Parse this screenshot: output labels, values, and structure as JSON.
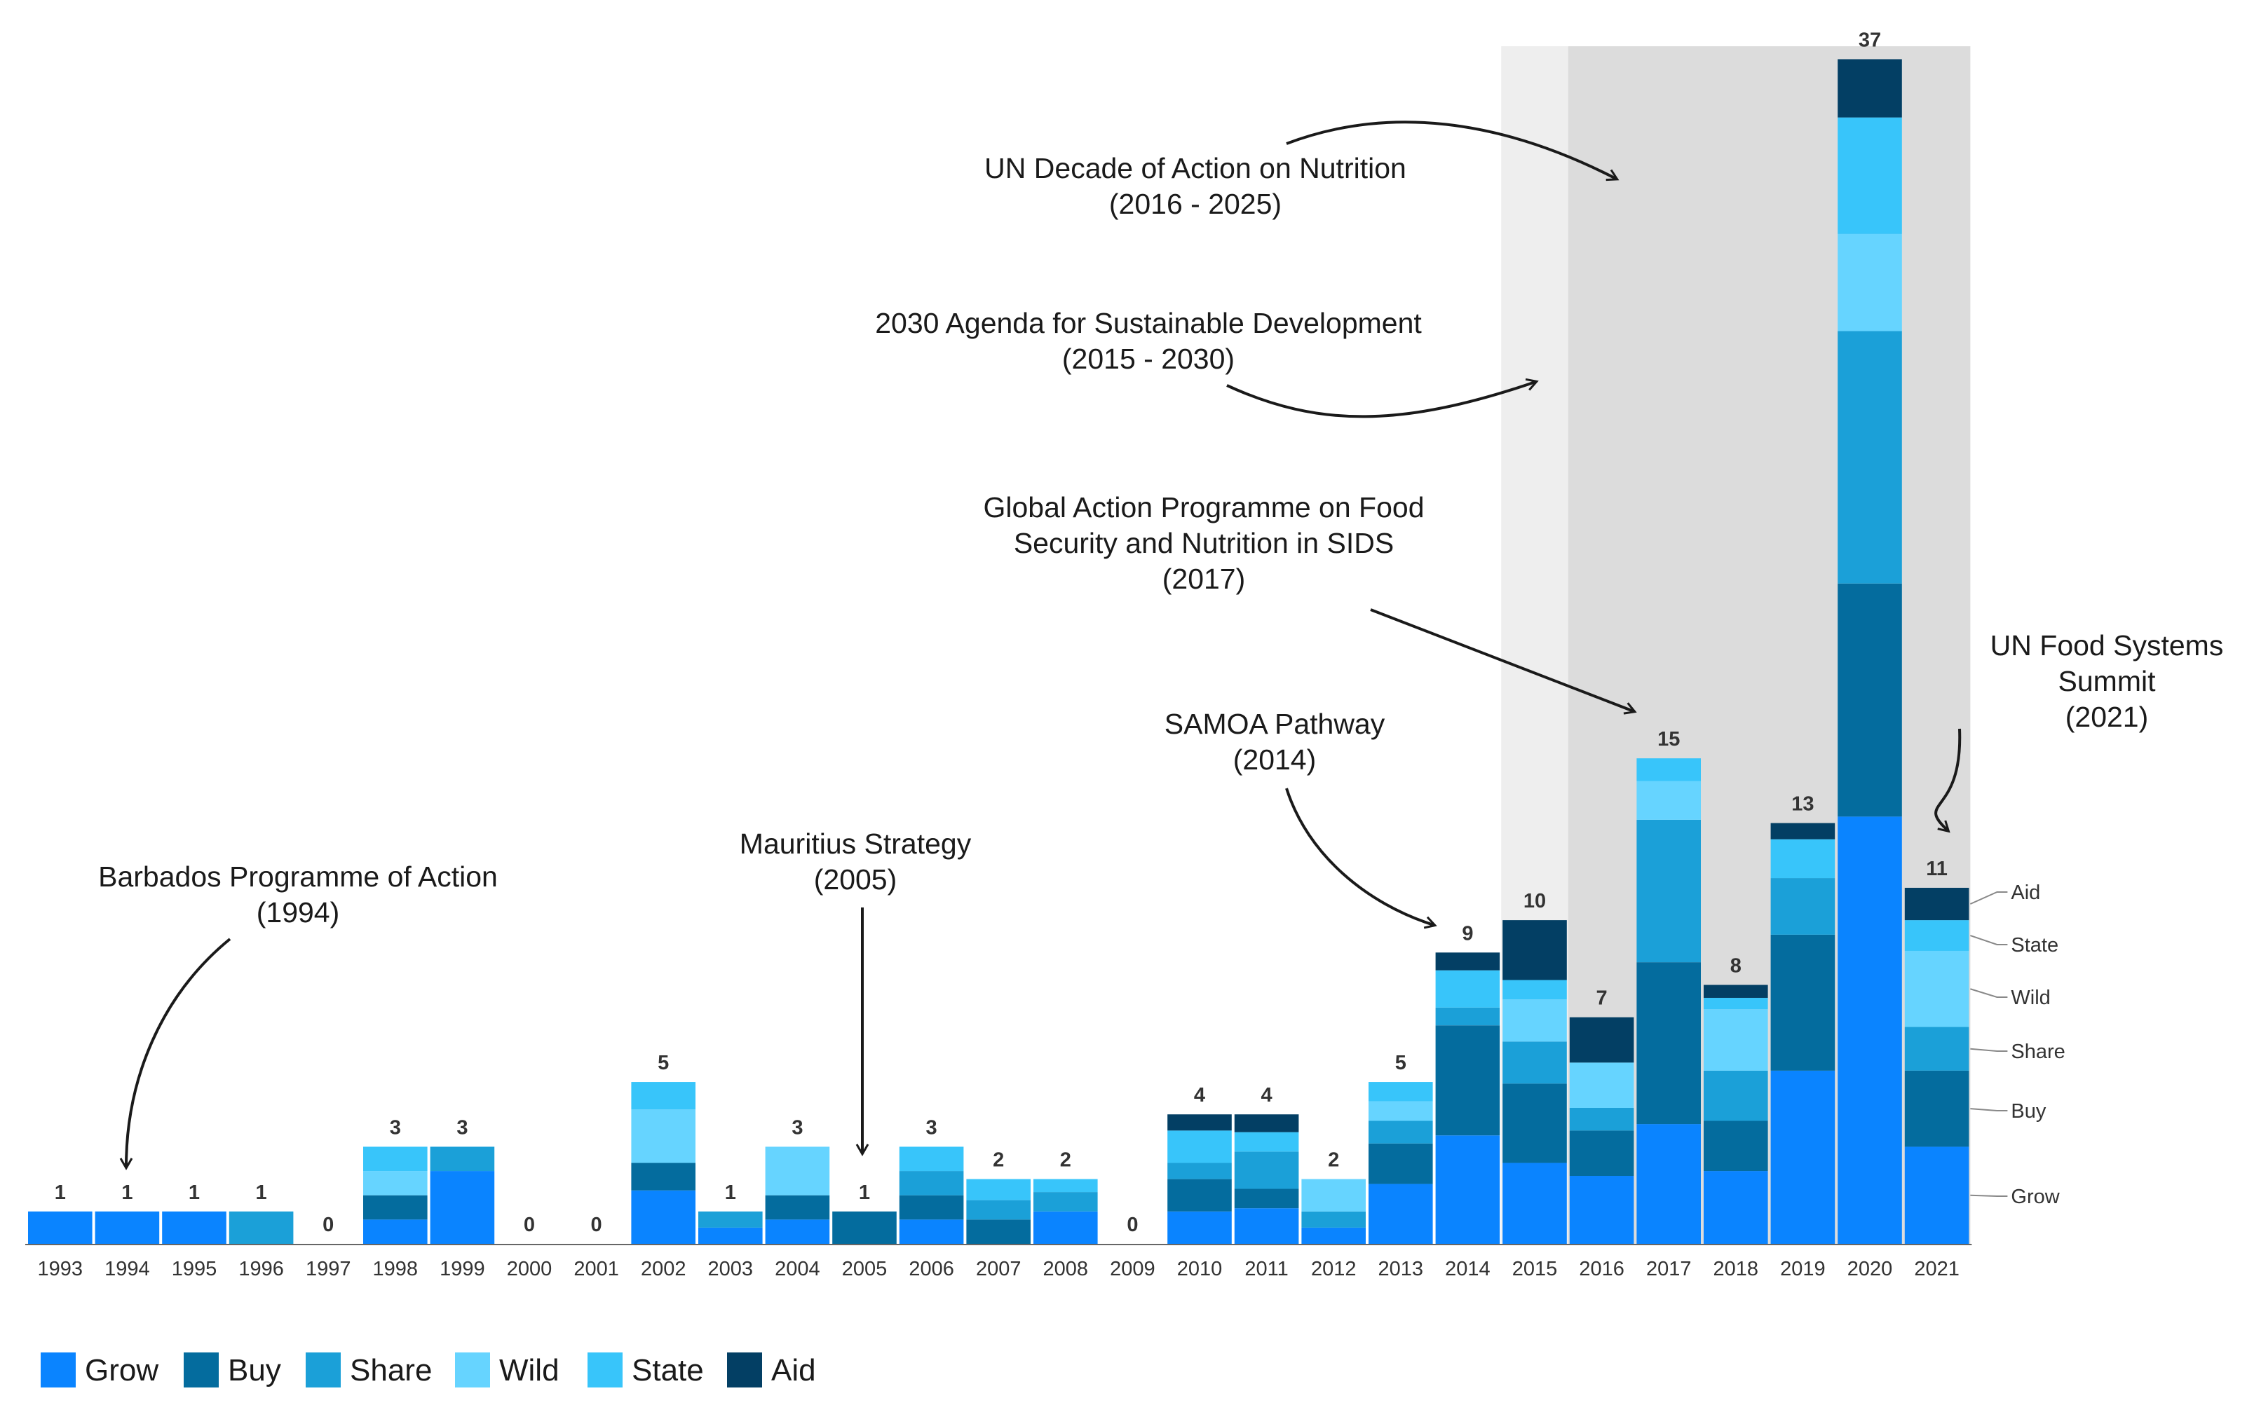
{
  "chart_data": {
    "type": "bar",
    "stacked": true,
    "title": "",
    "xlabel": "",
    "ylabel": "",
    "ylim": [
      0,
      37
    ],
    "grid": false,
    "categories": [
      "1993",
      "1994",
      "1995",
      "1996",
      "1997",
      "1998",
      "1999",
      "2000",
      "2001",
      "2002",
      "2003",
      "2004",
      "2005",
      "2006",
      "2007",
      "2008",
      "2009",
      "2010",
      "2011",
      "2012",
      "2013",
      "2014",
      "2015",
      "2016",
      "2017",
      "2018",
      "2019",
      "2020",
      "2021"
    ],
    "totals": [
      1,
      1,
      1,
      1,
      0,
      3,
      3,
      0,
      0,
      5,
      1,
      3,
      1,
      3,
      2,
      2,
      0,
      4,
      4,
      2,
      5,
      9,
      10,
      7,
      15,
      8,
      13,
      37,
      11
    ],
    "series": [
      {
        "name": "Grow",
        "color": "#0a84ff",
        "values": [
          1,
          1,
          1,
          0,
          0,
          0.75,
          2.25,
          0,
          0,
          1.65,
          0.5,
          0.75,
          0,
          0.75,
          0,
          1,
          0,
          1,
          1.1,
          0.5,
          1.85,
          3.35,
          2.5,
          2.1,
          3.7,
          2.25,
          5.35,
          13.2,
          3
        ]
      },
      {
        "name": "Buy",
        "color": "#046c9e",
        "values": [
          0,
          0,
          0,
          0,
          0,
          0.75,
          0,
          0,
          0,
          0.85,
          0,
          0.75,
          1,
          0.75,
          0.75,
          0,
          0,
          1,
          0.6,
          0,
          1.25,
          3.4,
          2.45,
          1.4,
          5,
          1.55,
          4.2,
          7.2,
          2.35
        ]
      },
      {
        "name": "Share",
        "color": "#1ba0d8",
        "values": [
          0,
          0,
          0,
          1,
          0,
          0,
          0.75,
          0,
          0,
          0,
          0.5,
          0,
          0,
          0.75,
          0.6,
          0.6,
          0,
          0.5,
          1.15,
          0.5,
          0.7,
          0.55,
          1.3,
          0.7,
          4.4,
          1.55,
          1.75,
          7.8,
          1.35
        ]
      },
      {
        "name": "Wild",
        "color": "#66d4ff",
        "values": [
          0,
          0,
          0,
          0,
          0,
          0.75,
          0,
          0,
          0,
          1.65,
          0,
          1.5,
          0,
          0,
          0,
          0,
          0,
          0,
          0,
          1,
          0.6,
          0,
          1.3,
          1.4,
          1.2,
          1.9,
          0,
          3,
          2.35
        ]
      },
      {
        "name": "State",
        "color": "#38c5fa",
        "values": [
          0,
          0,
          0,
          0,
          0,
          0.75,
          0,
          0,
          0,
          0.85,
          0,
          0,
          0,
          0.75,
          0.65,
          0.4,
          0,
          1,
          0.6,
          0,
          0.6,
          1.15,
          0.6,
          0,
          0.7,
          0.35,
          1.2,
          3.6,
          0.95
        ]
      },
      {
        "name": "Aid",
        "color": "#033f64",
        "values": [
          0,
          0,
          0,
          0,
          0,
          0,
          0,
          0,
          0,
          0,
          0,
          0,
          0,
          0,
          0,
          0,
          0,
          0.5,
          0.55,
          0,
          0,
          0.55,
          1.85,
          1.4,
          0,
          0.4,
          0.5,
          1.8,
          1
        ]
      }
    ],
    "highlight_ranges": [
      {
        "from": "2015",
        "to": "2015",
        "shade": "light"
      },
      {
        "from": "2016",
        "to": "2021",
        "shade": "dark"
      }
    ],
    "series_side_labels": [
      "Aid",
      "State",
      "Wild",
      "Share",
      "Buy",
      "Grow"
    ],
    "annotations": [
      {
        "text": [
          "Barbados Programme of Action",
          "(1994)"
        ],
        "target_year": "1994"
      },
      {
        "text": [
          "Mauritius Strategy",
          "(2005)"
        ],
        "target_year": "2005"
      },
      {
        "text": [
          "SAMOA Pathway",
          "(2014)"
        ],
        "target_year": "2014"
      },
      {
        "text": [
          "Global Action Programme on Food",
          "Security and Nutrition in SIDS",
          "(2017)"
        ],
        "target_year": "2017"
      },
      {
        "text": [
          "2030 Agenda for Sustainable Development",
          "(2015 - 2030)"
        ],
        "target_year": "2015"
      },
      {
        "text": [
          "UN Decade of Action on Nutrition",
          "(2016 - 2025)"
        ],
        "target_year": "2016"
      },
      {
        "text": [
          "UN Food Systems",
          "Summit",
          "(2021)"
        ],
        "target_year": "2021"
      }
    ],
    "legend": [
      "Grow",
      "Buy",
      "Share",
      "Wild",
      "State",
      "Aid"
    ],
    "legend_position": "bottom-left"
  }
}
